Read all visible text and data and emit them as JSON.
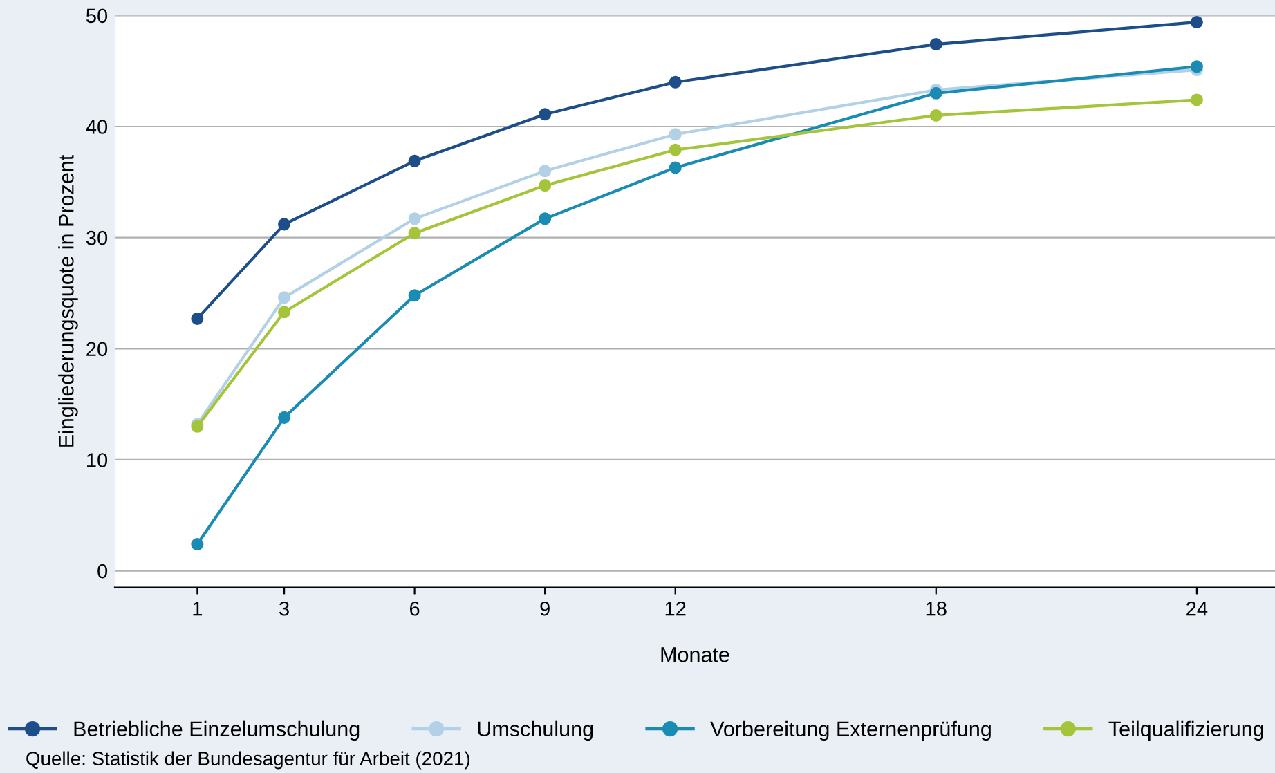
{
  "chart_data": {
    "type": "line",
    "xlabel": "Monate",
    "ylabel": "Eingliederungsquote in Prozent",
    "x": [
      1,
      3,
      6,
      9,
      12,
      18,
      24
    ],
    "series": [
      {
        "name": "Betriebliche Einzelumschulung",
        "color": "#1d4e89",
        "values": [
          22.7,
          31.2,
          36.9,
          41.1,
          44.0,
          47.4,
          49.4
        ]
      },
      {
        "name": "Umschulung",
        "color": "#b3d1e6",
        "values": [
          13.2,
          24.6,
          31.7,
          36.0,
          39.3,
          43.3,
          45.1
        ]
      },
      {
        "name": "Vorbereitung Externenprüfung",
        "color": "#1a8cb4",
        "values": [
          2.4,
          13.8,
          24.8,
          31.7,
          36.3,
          43.0,
          45.4
        ]
      },
      {
        "name": "Teilqualifizierung",
        "color": "#a4c43a",
        "values": [
          13.0,
          23.3,
          30.4,
          34.7,
          37.9,
          41.0,
          42.4
        ]
      }
    ],
    "xlim": [
      -0.9,
      25.8
    ],
    "xticks": [
      1,
      3,
      6,
      9,
      12,
      18,
      24
    ],
    "ylim": [
      -1.5,
      50
    ],
    "yticks": [
      0,
      10,
      20,
      30,
      40,
      50
    ],
    "grid": "y",
    "legend": "bottom",
    "marker": "circle",
    "line_style": "solid",
    "annotations": [
      "Quelle: Statistik der Bundesagentur für Arbeit (2021)"
    ]
  }
}
